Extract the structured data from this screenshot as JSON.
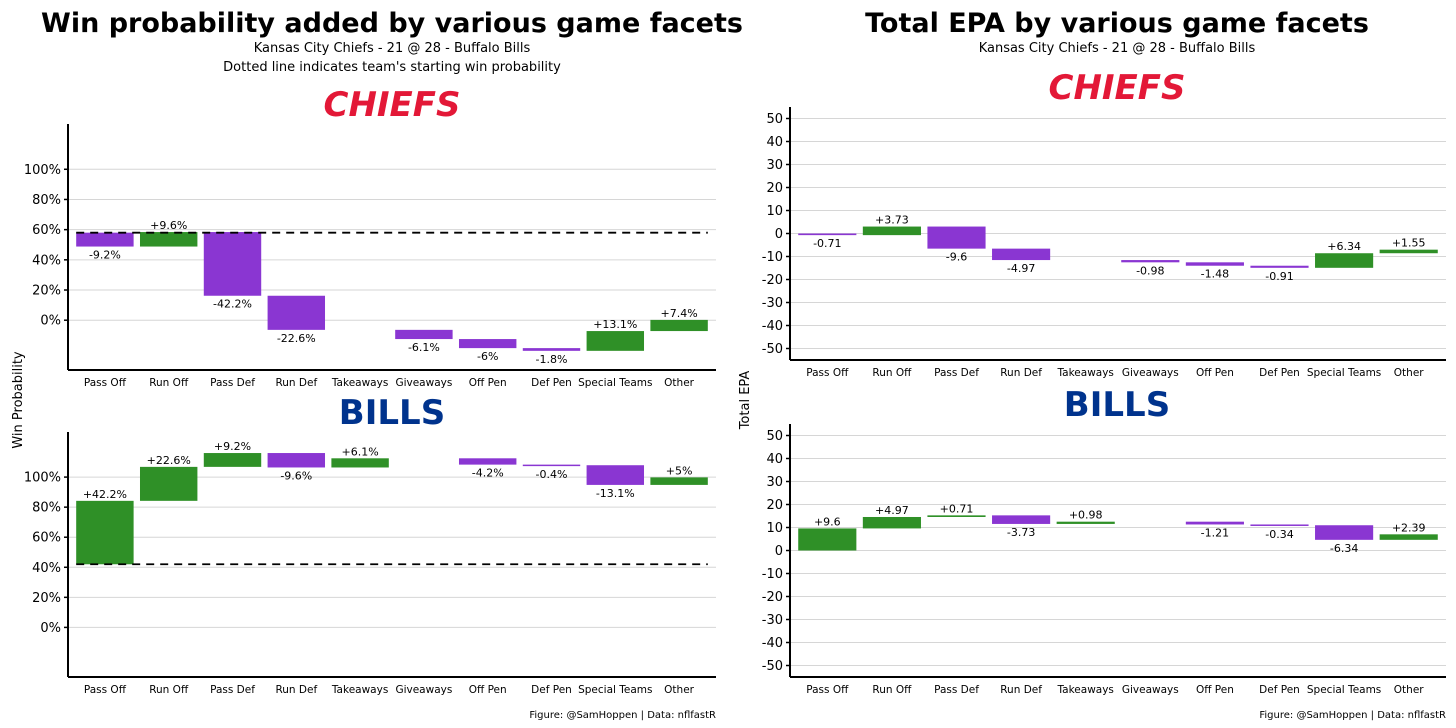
{
  "colors": {
    "negative": "#8a36d2",
    "positive": "#2f9027",
    "grid": "#d6d6d6",
    "chiefs": "#e31837",
    "bills": "#00338d"
  },
  "left": {
    "title": "Win probability added by various game facets",
    "subtitle": "Kansas City Chiefs - 21 @ 28 - Buffalo Bills",
    "subtitle2": "Dotted line indicates team's starting win probability",
    "ylabel": "Win Probability",
    "caption": "Figure: @SamHoppen | Data: nflfastR"
  },
  "right": {
    "title": "Total EPA by various game facets",
    "subtitle": "Kansas City Chiefs - 21 @ 28 - Buffalo Bills",
    "ylabel": "Total EPA",
    "caption": "Figure: @SamHoppen | Data: nflfastR"
  },
  "logos": {
    "chiefs": "CHIEFS",
    "bills": "BILLS"
  },
  "chart_data": [
    {
      "type": "waterfall",
      "panel": "wp",
      "team": "Chiefs",
      "start": 58,
      "categories": [
        "Pass Off",
        "Run Off",
        "Pass Def",
        "Run Def",
        "Takeaways",
        "Giveaways",
        "Off Pen",
        "Def Pen",
        "Special Teams",
        "Other"
      ],
      "values": [
        -9.2,
        9.6,
        -42.2,
        -22.6,
        0,
        -6.1,
        -6,
        -1.8,
        13.1,
        7.4
      ],
      "labels": [
        "-9.2%",
        "+9.6%",
        "-42.2%",
        "-22.6%",
        "",
        "-6.1%",
        "-6%",
        "-1.8%",
        "+13.1%",
        "+7.4%"
      ],
      "yticks": [
        0,
        20,
        40,
        60,
        80,
        100
      ],
      "ytick_labels": [
        "0%",
        "20%",
        "40%",
        "60%",
        "80%",
        "100%"
      ],
      "ylim": [
        -33,
        130
      ]
    },
    {
      "type": "waterfall",
      "panel": "wp",
      "team": "Bills",
      "start": 42,
      "categories": [
        "Pass Off",
        "Run Off",
        "Pass Def",
        "Run Def",
        "Takeaways",
        "Giveaways",
        "Off Pen",
        "Def Pen",
        "Special Teams",
        "Other"
      ],
      "values": [
        42.2,
        22.6,
        9.2,
        -9.6,
        6.1,
        0,
        -4.2,
        -0.4,
        -13.1,
        5
      ],
      "labels": [
        "+42.2%",
        "+22.6%",
        "+9.2%",
        "-9.6%",
        "+6.1%",
        "",
        "-4.2%",
        "-0.4%",
        "-13.1%",
        "+5%"
      ],
      "yticks": [
        0,
        20,
        40,
        60,
        80,
        100
      ],
      "ytick_labels": [
        "0%",
        "20%",
        "40%",
        "60%",
        "80%",
        "100%"
      ],
      "ylim": [
        -33,
        130
      ]
    },
    {
      "type": "waterfall",
      "panel": "epa",
      "team": "Chiefs",
      "start": 0,
      "categories": [
        "Pass Off",
        "Run Off",
        "Pass Def",
        "Run Def",
        "Takeaways",
        "Giveaways",
        "Off Pen",
        "Def Pen",
        "Special Teams",
        "Other"
      ],
      "values": [
        -0.71,
        3.73,
        -9.6,
        -4.97,
        0,
        -0.98,
        -1.48,
        -0.91,
        6.34,
        1.55
      ],
      "labels": [
        "-0.71",
        "+3.73",
        "-9.6",
        "-4.97",
        "",
        "-0.98",
        "-1.48",
        "-0.91",
        "+6.34",
        "+1.55"
      ],
      "yticks": [
        -50,
        -40,
        -30,
        -20,
        -10,
        0,
        10,
        20,
        30,
        40,
        50
      ],
      "ytick_labels": [
        "-50",
        "-40",
        "-30",
        "-20",
        "-10",
        "0",
        "10",
        "20",
        "30",
        "40",
        "50"
      ],
      "ylim": [
        -55,
        55
      ]
    },
    {
      "type": "waterfall",
      "panel": "epa",
      "team": "Bills",
      "start": 0,
      "categories": [
        "Pass Off",
        "Run Off",
        "Pass Def",
        "Run Def",
        "Takeaways",
        "Giveaways",
        "Off Pen",
        "Def Pen",
        "Special Teams",
        "Other"
      ],
      "values": [
        9.6,
        4.97,
        0.71,
        -3.73,
        0.98,
        0,
        -1.21,
        -0.34,
        -6.34,
        2.39
      ],
      "labels": [
        "+9.6",
        "+4.97",
        "+0.71",
        "-3.73",
        "+0.98",
        "",
        "-1.21",
        "-0.34",
        "-6.34",
        "+2.39"
      ],
      "yticks": [
        -50,
        -40,
        -30,
        -20,
        -10,
        0,
        10,
        20,
        30,
        40,
        50
      ],
      "ytick_labels": [
        "-50",
        "-40",
        "-30",
        "-20",
        "-10",
        "0",
        "10",
        "20",
        "30",
        "40",
        "50"
      ],
      "ylim": [
        -55,
        55
      ]
    }
  ]
}
